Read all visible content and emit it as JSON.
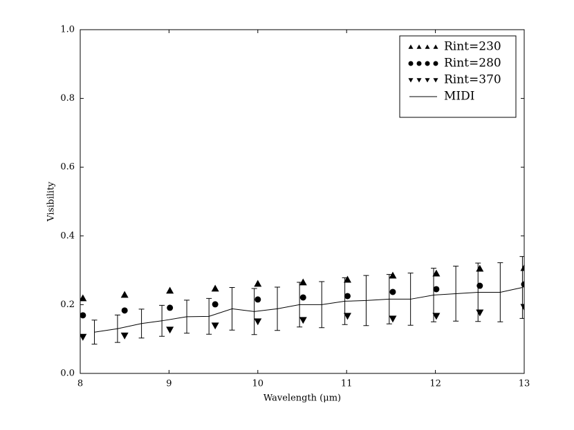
{
  "chart_data": {
    "type": "scatter",
    "xlabel": "Wavelength (μm)",
    "ylabel": "Visibility",
    "xlim": [
      8,
      13
    ],
    "ylim": [
      0,
      1
    ],
    "xticks": [
      8,
      9,
      10,
      11,
      12,
      13
    ],
    "yticks": [
      {
        "value": 0,
        "label": "0.0"
      },
      {
        "value": 0.2,
        "label": "0.2"
      },
      {
        "value": 0.4,
        "label": "0.4"
      },
      {
        "value": 0.6,
        "label": "0.6"
      },
      {
        "value": 0.8,
        "label": "0.8"
      },
      {
        "value": 1,
        "label": "1.0"
      }
    ],
    "legend_position": "upper right",
    "series": [
      {
        "name": "Rint=230",
        "marker": "triangle-up",
        "color": "#000000",
        "x": [
          8.03,
          8.5,
          9.01,
          9.52,
          10.0,
          10.51,
          11.01,
          11.52,
          12.01,
          12.5,
          13.0
        ],
        "values": [
          0.219,
          0.229,
          0.241,
          0.247,
          0.261,
          0.265,
          0.273,
          0.285,
          0.291,
          0.305,
          0.307
        ]
      },
      {
        "name": "Rint=280",
        "marker": "circle",
        "color": "#000000",
        "x": [
          8.03,
          8.5,
          9.01,
          9.52,
          10.0,
          10.51,
          11.01,
          11.52,
          12.01,
          12.5,
          13.0
        ],
        "values": [
          0.169,
          0.183,
          0.191,
          0.201,
          0.215,
          0.221,
          0.225,
          0.237,
          0.245,
          0.255,
          0.259
        ]
      },
      {
        "name": "Rint=370",
        "marker": "triangle-down",
        "color": "#000000",
        "x": [
          8.03,
          8.5,
          9.01,
          9.52,
          10.0,
          10.51,
          11.01,
          11.52,
          12.01,
          12.5,
          13.0
        ],
        "values": [
          0.106,
          0.11,
          0.127,
          0.139,
          0.151,
          0.155,
          0.167,
          0.159,
          0.167,
          0.177,
          0.193
        ]
      },
      {
        "name": "MIDI",
        "marker": "line",
        "color": "#000000",
        "x": [
          8.16,
          8.42,
          8.69,
          8.92,
          9.2,
          9.45,
          9.71,
          9.96,
          10.22,
          10.47,
          10.72,
          10.98,
          11.22,
          11.48,
          11.72,
          11.98,
          12.23,
          12.48,
          12.73,
          12.98
        ],
        "values": [
          0.12,
          0.13,
          0.145,
          0.153,
          0.165,
          0.166,
          0.188,
          0.18,
          0.188,
          0.2,
          0.2,
          0.21,
          0.212,
          0.216,
          0.216,
          0.228,
          0.232,
          0.236,
          0.236,
          0.25
        ],
        "errors": [
          0.035,
          0.04,
          0.042,
          0.045,
          0.048,
          0.052,
          0.062,
          0.067,
          0.063,
          0.065,
          0.067,
          0.068,
          0.073,
          0.072,
          0.076,
          0.078,
          0.08,
          0.085,
          0.086,
          0.09
        ]
      }
    ]
  }
}
